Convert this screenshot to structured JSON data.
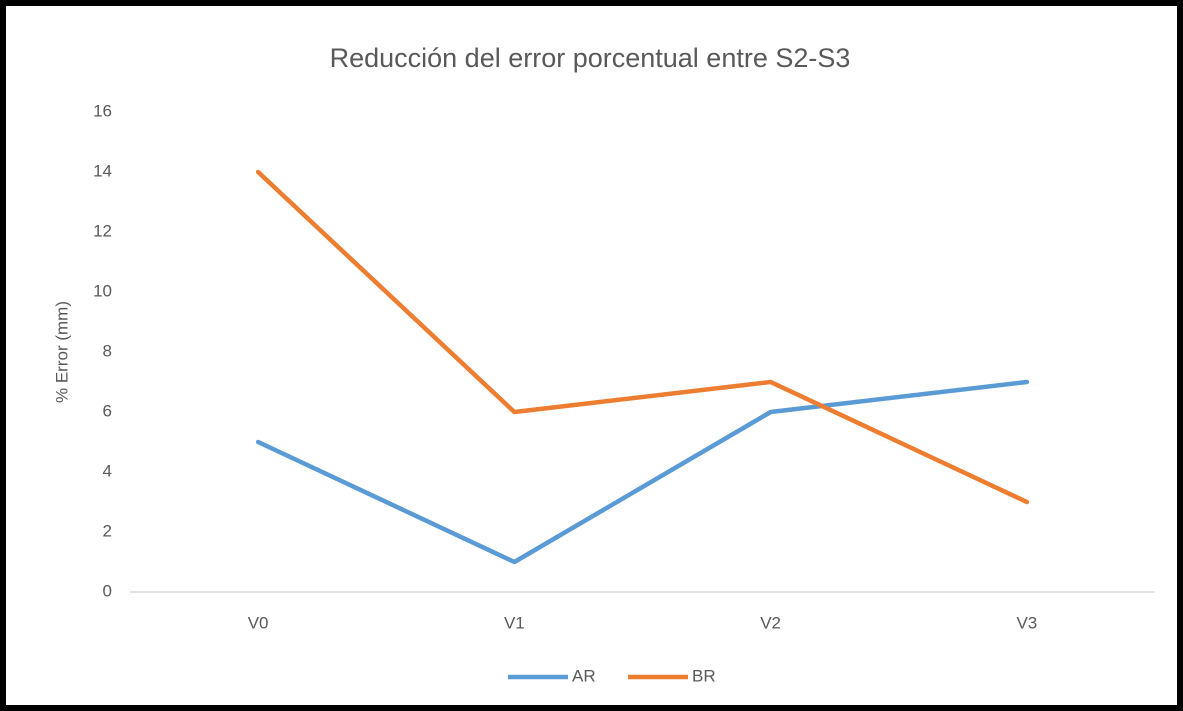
{
  "chart_data": {
    "type": "line",
    "title": "Reducción del error porcentual entre S2-S3",
    "y_label": "% Error (mm)",
    "categories": [
      "V0",
      "V1",
      "V2",
      "V3"
    ],
    "series": [
      {
        "name": "AR",
        "color": "#5b9bd5",
        "values": [
          5,
          1,
          6,
          7
        ]
      },
      {
        "name": "BR",
        "color": "#ed7d31",
        "values": [
          14,
          6,
          7,
          3
        ]
      }
    ],
    "ylim": [
      0,
      16
    ],
    "yticks": [
      0,
      2,
      4,
      6,
      8,
      10,
      12,
      14,
      16
    ],
    "grid": false,
    "legend": "bottom"
  }
}
